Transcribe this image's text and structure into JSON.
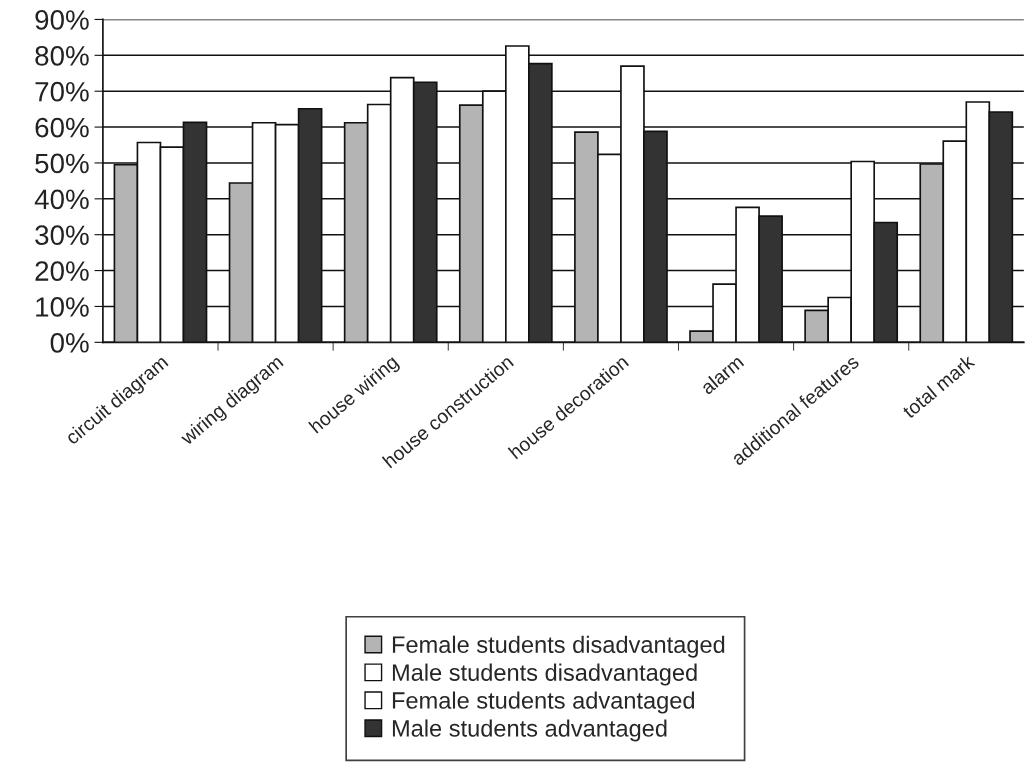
{
  "chart_data": {
    "type": "bar",
    "categories": [
      "circuit diagram",
      "wiring diagram",
      "house wiring",
      "house construction",
      "house decoration",
      "alarm",
      "additional features",
      "total mark"
    ],
    "series": [
      {
        "name": "Female students disadvantaged",
        "color": "#b4b4b4",
        "values": [
          49.5,
          44.4,
          61.2,
          66.1,
          58.6,
          3.1,
          8.9,
          49.7
        ]
      },
      {
        "name": "Male students disadvantaged",
        "color": "#ffffff",
        "values": [
          55.7,
          61.2,
          66.3,
          70.0,
          52.4,
          16.2,
          12.5,
          56.1
        ]
      },
      {
        "name": "Female students advantaged",
        "color": "#ffffff",
        "values": [
          54.4,
          60.7,
          73.8,
          82.6,
          77.0,
          37.6,
          50.4,
          67.0
        ]
      },
      {
        "name": "Male students advantaged",
        "color": "#333333",
        "values": [
          61.3,
          65.1,
          72.5,
          77.7,
          58.8,
          35.2,
          33.4,
          64.2
        ]
      }
    ],
    "ylim": [
      0,
      90
    ],
    "yticks": [
      {
        "value": 0,
        "label": "0%"
      },
      {
        "value": 10,
        "label": "10%"
      },
      {
        "value": 20,
        "label": "20%"
      },
      {
        "value": 30,
        "label": "30%"
      },
      {
        "value": 40,
        "label": "40%"
      },
      {
        "value": 50,
        "label": "50%"
      },
      {
        "value": 60,
        "label": "60%"
      },
      {
        "value": 70,
        "label": "70%"
      },
      {
        "value": 80,
        "label": "80%"
      },
      {
        "value": 90,
        "label": "90%"
      }
    ],
    "grid": "y",
    "legend": "bottom"
  }
}
